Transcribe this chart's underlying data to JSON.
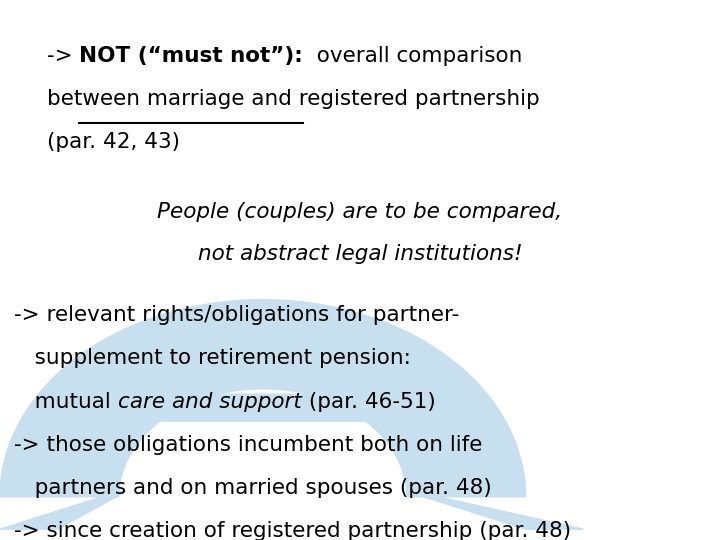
{
  "bg_color": "#ffffff",
  "watermark_color": "#c8dff0",
  "line1_arrow": "-> ",
  "line1_bold_underline": "NOT (“must not”):",
  "line1_normal": "  overall comparison",
  "line2": "between marriage and registered partnership",
  "line3": "(par. 42, 43)",
  "italic_line1": "People (couples) are to be compared,",
  "italic_line2": "not abstract legal institutions!",
  "bullet1_line1": "-> relevant rights/obligations for partner-",
  "bullet1_line2": "   supplement to retirement pension:",
  "bullet1_line3_prefix": "   mutual ",
  "bullet1_line3_italic": "care and support",
  "bullet1_line3_suffix": " (par. 46-51)",
  "bullet2_line1": "-> those obligations incumbent both on life",
  "bullet2_line2": "   partners and on married spouses (par. 48)",
  "bullet3": "-> since creation of registered partnership (par. 48)",
  "font_size_main": 15.5,
  "font_family": "DejaVu Sans"
}
